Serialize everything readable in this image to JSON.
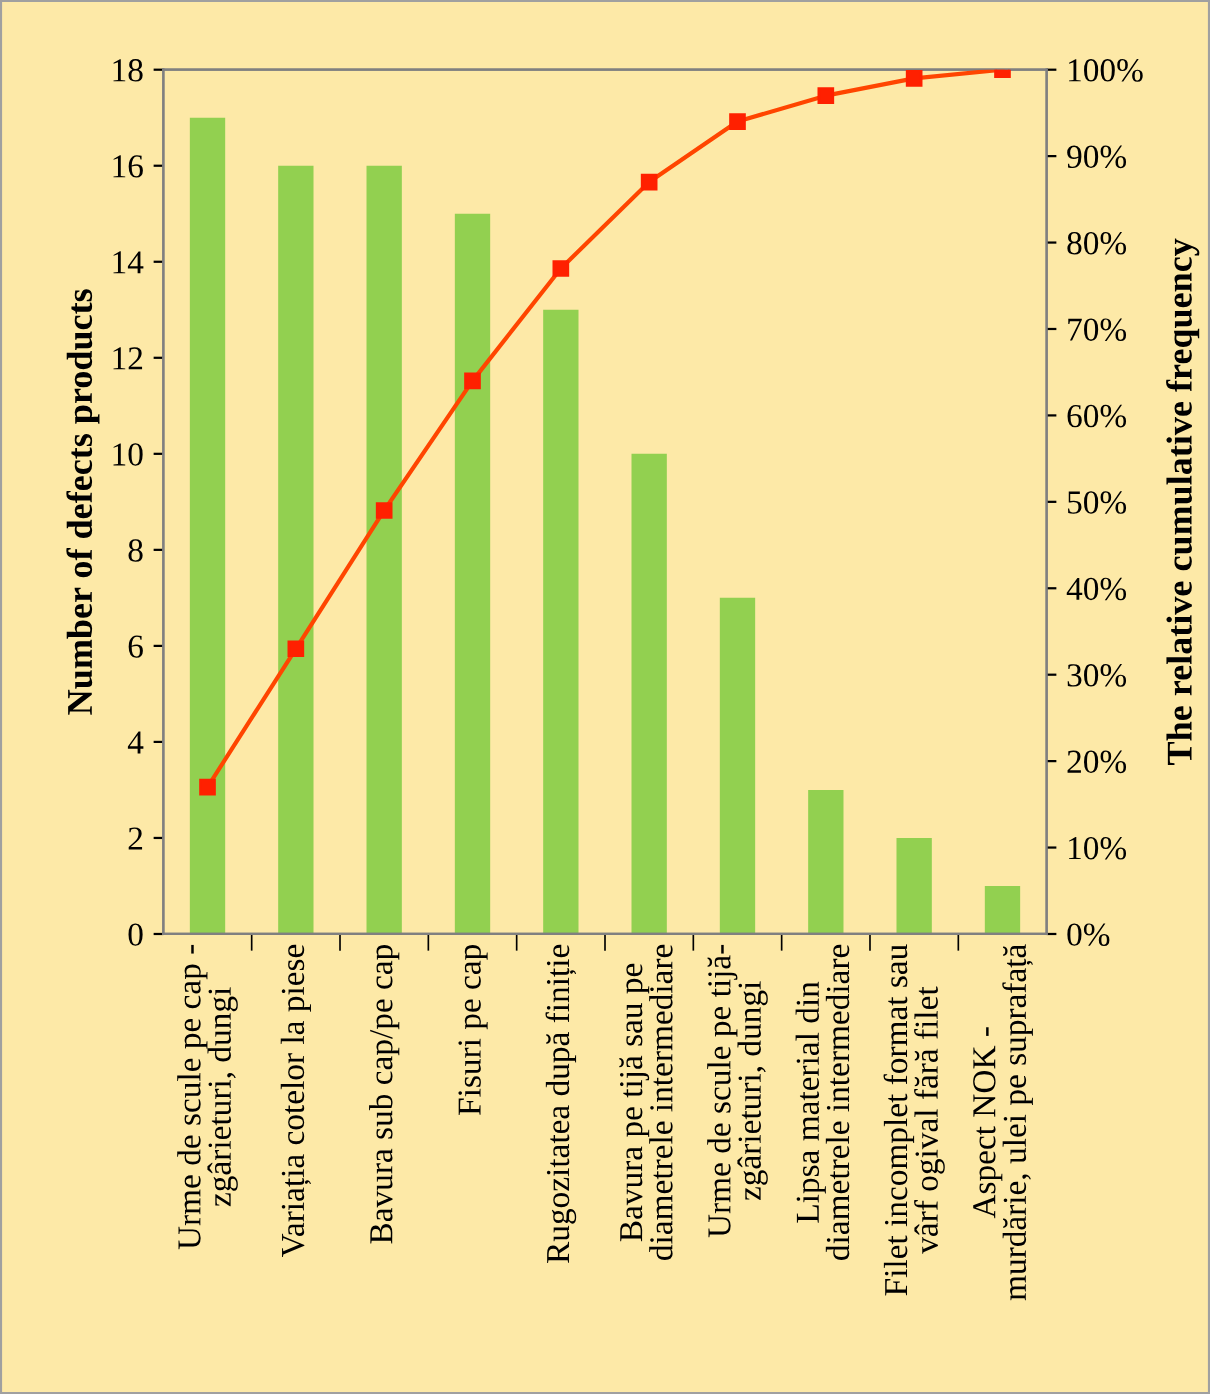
{
  "chart_data": {
    "type": "bar",
    "categories": [
      "Urme de scule pe cap -\nzgârieturi, dungi",
      "Variația cotelor la piese",
      "Bavura sub cap/pe cap",
      "Fisuri pe cap",
      "Rugozitatea după finiție",
      "Bavura pe tijă sau pe\ndiametrele intermediare",
      "Urme de scule pe tijă-\nzgârieturi, dungi",
      "Lipsa material din\ndiametrele intermediare",
      "Filet incomplet format sau\nvârf ogival fără filet",
      "Aspect NOK -\nmurdărie, ulei pe suprafață"
    ],
    "series": [
      {
        "color": "#92d050",
        "values": [
          17,
          16,
          16,
          15,
          13,
          10,
          7,
          3,
          2,
          1
        ]
      },
      {
        "type": "line",
        "axis": "y2",
        "color": "#ff4500",
        "marker": "square",
        "values": [
          17,
          33,
          49,
          64,
          77,
          87,
          94,
          97,
          99,
          100
        ]
      }
    ],
    "ylabel": "Number of defects products",
    "y2label": "The relative cumulative frequency",
    "ylim": [
      0,
      18
    ],
    "yticks": [
      0,
      2,
      4,
      6,
      8,
      10,
      12,
      14,
      16,
      18
    ],
    "y2lim": [
      0,
      100
    ],
    "y2ticks": [
      {
        "value": 0,
        "label": "0%"
      },
      {
        "value": 10,
        "label": "10%"
      },
      {
        "value": 20,
        "label": "20%"
      },
      {
        "value": 30,
        "label": "30%"
      },
      {
        "value": 40,
        "label": "40%"
      },
      {
        "value": 50,
        "label": "50%"
      },
      {
        "value": 60,
        "label": "60%"
      },
      {
        "value": 70,
        "label": "70%"
      },
      {
        "value": 80,
        "label": "80%"
      },
      {
        "value": 90,
        "label": "90%"
      },
      {
        "value": 100,
        "label": "100%"
      }
    ],
    "grid": false,
    "legend": false
  }
}
